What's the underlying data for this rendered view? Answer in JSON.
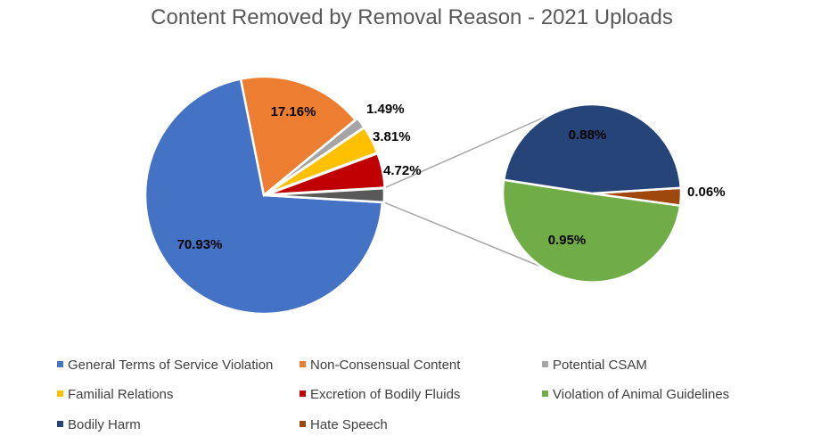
{
  "chart_data": {
    "type": "pie",
    "title": "Content Removed by Removal Reason - 2021 Uploads",
    "legend_position": "bottom",
    "series": [
      {
        "name": "General Terms of Service Violation",
        "value": 70.93,
        "label": "70.93%",
        "color": "#4472C4",
        "chart": "main"
      },
      {
        "name": "Non-Consensual Content",
        "value": 17.16,
        "label": "17.16%",
        "color": "#ED7D31",
        "chart": "main"
      },
      {
        "name": "Potential CSAM",
        "value": 1.49,
        "label": "1.49%",
        "color": "#A5A5A5",
        "chart": "main"
      },
      {
        "name": "Familial Relations",
        "value": 3.81,
        "label": "3.81%",
        "color": "#FFC000",
        "chart": "main"
      },
      {
        "name": "Excretion of Bodily Fluids",
        "value": 4.72,
        "label": "4.72%",
        "color": "#C00000",
        "chart": "main"
      },
      {
        "name": "Violation of Animal Guidelines",
        "value": 0.95,
        "label": "0.95%",
        "color": "#70AD47",
        "chart": "secondary"
      },
      {
        "name": "Bodily Harm",
        "value": 0.88,
        "label": "0.88%",
        "color": "#264478",
        "chart": "secondary"
      },
      {
        "name": "Hate Speech",
        "value": 0.06,
        "label": "0.06%",
        "color": "#9E480E",
        "chart": "secondary"
      }
    ],
    "other_slice_color": "#595959"
  }
}
